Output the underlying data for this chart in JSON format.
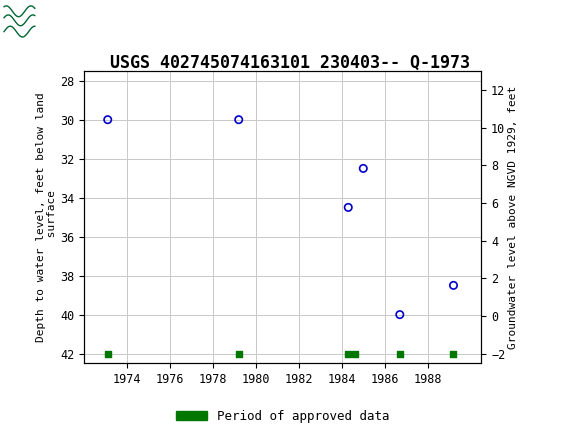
{
  "title": "USGS 402745074163101 230403-- Q-1973",
  "ylabel_left": "Depth to water level, feet below land\n surface",
  "ylabel_right": "Groundwater level above NGVD 1929, feet",
  "scatter_x": [
    1973.1,
    1979.2,
    1984.3,
    1985.0,
    1986.7,
    1989.2
  ],
  "scatter_y": [
    30.0,
    30.0,
    34.5,
    32.5,
    40.0,
    38.5
  ],
  "green_squares_x": [
    1973.1,
    1979.2,
    1984.3,
    1984.6,
    1986.7,
    1989.2
  ],
  "green_squares_y": [
    42.0,
    42.0,
    42.0,
    42.0,
    42.0,
    42.0
  ],
  "xlim": [
    1972.0,
    1990.5
  ],
  "ylim_left": [
    42.5,
    27.5
  ],
  "ylim_right": [
    -2.5,
    13.0
  ],
  "xticks": [
    1974,
    1976,
    1978,
    1980,
    1982,
    1984,
    1986,
    1988
  ],
  "yticks_left": [
    28,
    30,
    32,
    34,
    36,
    38,
    40,
    42
  ],
  "yticks_right": [
    -2,
    0,
    2,
    4,
    6,
    8,
    10,
    12
  ],
  "scatter_color": "#0000CC",
  "green_color": "#007700",
  "header_color": "#006633",
  "header_text_color": "#ffffff",
  "background_color": "#ffffff",
  "grid_color": "#c8c8c8",
  "title_fontsize": 12,
  "axis_label_fontsize": 8,
  "tick_fontsize": 8.5,
  "legend_label": "Period of approved data",
  "fig_width": 5.8,
  "fig_height": 4.3,
  "fig_dpi": 100
}
